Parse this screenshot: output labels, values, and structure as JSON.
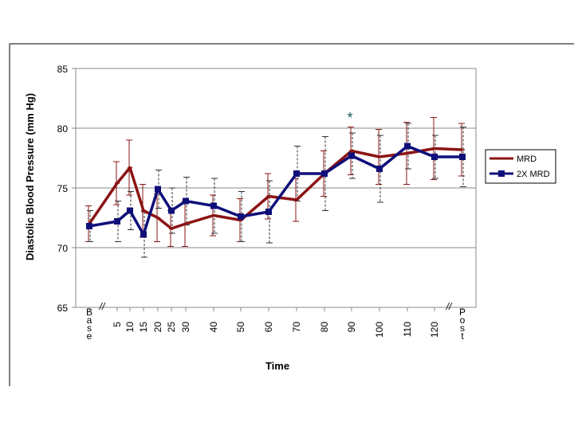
{
  "chart_data": {
    "type": "line",
    "title": "",
    "xlabel": "Time",
    "ylabel": "Diastolic Blood Pressure (mm Hg)",
    "ylim": [
      65,
      85
    ],
    "yticks": [
      65,
      70,
      75,
      80,
      85
    ],
    "grid": true,
    "legend": "right",
    "axis_break_marker": "//",
    "annotation": "*",
    "annotation_at": "90",
    "categories": [
      "Base",
      "5",
      "10",
      "15",
      "20",
      "25",
      "30",
      "40",
      "50",
      "60",
      "70",
      "80",
      "90",
      "100",
      "110",
      "120",
      "Post"
    ],
    "series": [
      {
        "name": "MRD",
        "color": "#8B1414",
        "marker": "cross",
        "values": [
          72.0,
          75.4,
          76.7,
          73.1,
          72.5,
          71.6,
          72.0,
          72.7,
          72.3,
          74.3,
          74.0,
          76.2,
          78.1,
          77.6,
          77.9,
          78.3,
          78.2
        ],
        "error": [
          1.5,
          1.8,
          2.3,
          2.2,
          2.0,
          1.5,
          1.9,
          1.7,
          1.8,
          1.9,
          1.8,
          1.9,
          2.0,
          2.3,
          2.6,
          2.6,
          2.2
        ]
      },
      {
        "name": "2X MRD",
        "color": "#0F0F7A",
        "marker": "square",
        "values": [
          71.8,
          72.2,
          73.1,
          71.1,
          74.9,
          73.1,
          73.9,
          73.5,
          72.6,
          73.0,
          76.2,
          76.2,
          77.7,
          76.6,
          78.5,
          77.6,
          77.6
        ],
        "error": [
          1.3,
          1.7,
          1.6,
          1.9,
          1.6,
          1.9,
          2.0,
          2.3,
          2.1,
          2.6,
          2.3,
          3.1,
          1.9,
          2.8,
          1.9,
          1.8,
          2.5
        ]
      }
    ]
  }
}
